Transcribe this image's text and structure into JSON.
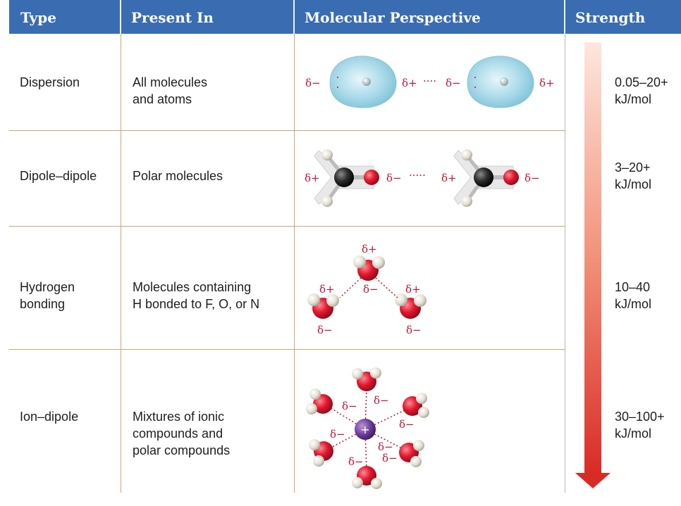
{
  "header": {
    "col_type": "Type",
    "col_present": "Present In",
    "col_molecular": "Molecular Perspective",
    "col_strength": "Strength"
  },
  "rows": [
    {
      "type": "Dispersion",
      "present": "All molecules\nand atoms",
      "strength": "0.05–20+\nkJ/mol",
      "labels": [
        "δ−",
        "δ+",
        "····",
        "δ−",
        "δ+"
      ]
    },
    {
      "type": "Dipole–dipole",
      "present": "Polar molecules",
      "strength": "3–20+\nkJ/mol",
      "labels": [
        "δ+",
        "δ−",
        "·····",
        "δ+",
        "δ−"
      ]
    },
    {
      "type": "Hydrogen\nbonding",
      "present": "Molecules containing\nH bonded to F, O, or N",
      "strength": "10–40\nkJ/mol",
      "labels": [
        "δ+",
        "δ+",
        "δ−",
        "δ+",
        "δ−",
        "δ−"
      ]
    },
    {
      "type": "Ion–dipole",
      "present": "Mixtures of ionic\ncompounds and\npolar compounds",
      "strength": "30–100+\nkJ/mol",
      "labels": [
        "δ−",
        "δ−",
        "δ−",
        "δ−",
        "δ−",
        "δ−",
        "δ−",
        "+"
      ]
    }
  ],
  "colors": {
    "header_bg": "#3a6cb1",
    "rule": "#c8a877",
    "delta": "#c8102e",
    "arrow_top": "#fde7de",
    "arrow_bottom": "#d92b25"
  }
}
